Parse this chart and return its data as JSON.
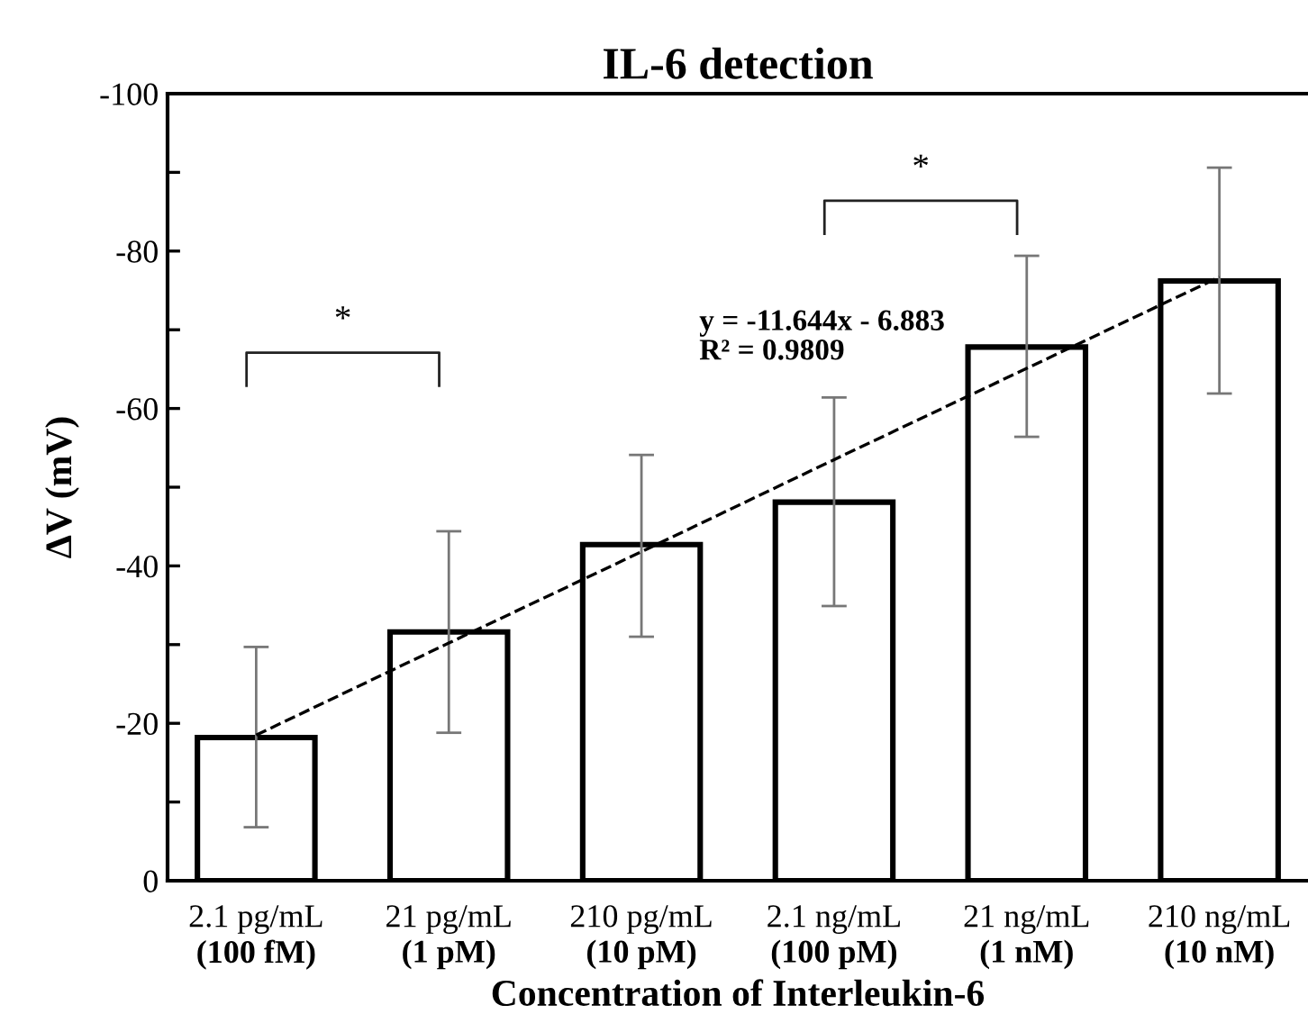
{
  "chart_data": {
    "type": "bar",
    "title": "IL-6 detection",
    "xlabel": "Concentration of Interleukin-6",
    "ylabel": "ΔV (mV)",
    "categories": [
      "2.1 pg/mL\n(100 fM)",
      "21 pg/mL\n(1 pM)",
      "210 pg/mL\n(10 pM)",
      "2.1 ng/mL\n(100 pM)",
      "21 ng/mL\n(1 nM)",
      "210 ng/mL\n(10 nM)"
    ],
    "series": [
      {
        "color": "#ffffff",
        "values": [
          -18.2,
          -31.6,
          -42.7,
          -48.1,
          -67.8,
          -76.2
        ],
        "errors": [
          [
            -6.8,
            -29.7
          ],
          [
            -18.8,
            -44.4
          ],
          [
            -31.0,
            -54.1
          ],
          [
            -34.9,
            -61.4
          ],
          [
            -56.4,
            -79.4
          ],
          [
            -61.9,
            -90.6
          ]
        ]
      },
      {
        "type": "line",
        "color": "#000000",
        "line_style": "dashed",
        "values": [
          -18.5,
          -30.2,
          -41.8,
          -53.5,
          -65.1,
          -76.7
        ]
      }
    ],
    "ylim": [
      0,
      -100
    ],
    "yticks": [
      0,
      {
        "value": -10,
        "label": null
      },
      -20,
      {
        "value": -30,
        "label": null
      },
      -40,
      {
        "value": -50,
        "label": null
      },
      -60,
      {
        "value": -70,
        "label": null
      },
      -80,
      {
        "value": -90,
        "label": null
      },
      -100
    ],
    "grid": false,
    "legend": false,
    "annotations": [
      "*",
      "*",
      "y = -11.644x - 6.883\nR² = 0.9809"
    ]
  }
}
